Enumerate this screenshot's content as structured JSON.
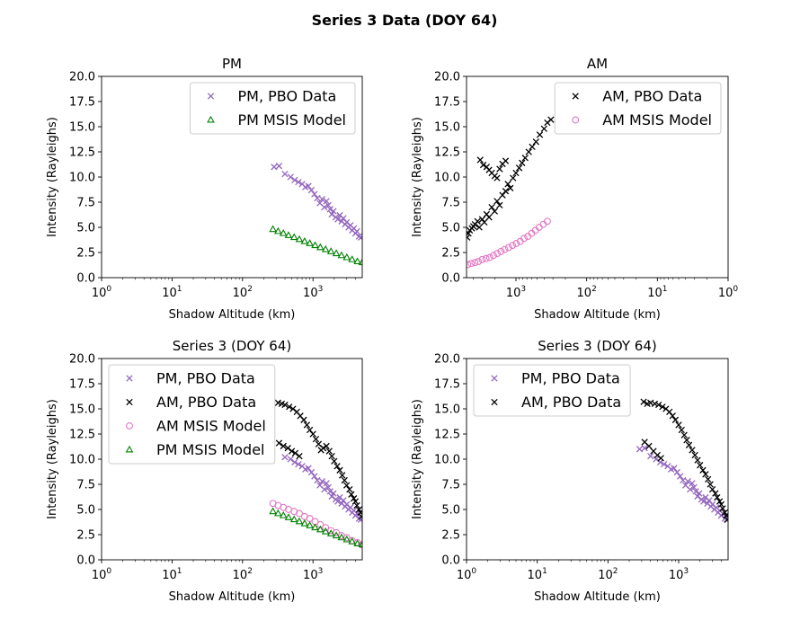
{
  "figure": {
    "title": "Series 3 Data (DOY 64)"
  },
  "colors": {
    "pm_data": "#9467bd",
    "am_data": "#000000",
    "am_model": "#e377c2",
    "pm_model": "#008000"
  },
  "chart_data": [
    {
      "type": "scatter",
      "title": "PM",
      "xlabel": "Shadow Altitude (km)",
      "ylabel": "Intensity (Rayleighs)",
      "xscale": "log",
      "xlim": [
        1,
        5000
      ],
      "ylim": [
        0,
        20
      ],
      "xticks": [
        "10^0",
        "10^1",
        "10^2",
        "10^3"
      ],
      "yticks": [
        "0.0",
        "2.5",
        "5.0",
        "7.5",
        "10.0",
        "12.5",
        "15.0",
        "17.5",
        "20.0"
      ],
      "legend": "top-right",
      "series": [
        {
          "name": "PM, PBO Data",
          "marker": "x",
          "color": "#9467bd",
          "x": [
            280,
            330,
            400,
            480,
            550,
            620,
            700,
            780,
            860,
            950,
            1050,
            1150,
            1250,
            1350,
            1450,
            1550,
            1650,
            1750,
            1850,
            1950,
            2100,
            2250,
            2400,
            2550,
            2700,
            2850,
            3000,
            3200,
            3400,
            3600,
            3800,
            4000,
            4200,
            4500,
            4800
          ],
          "y": [
            11.0,
            11.1,
            10.3,
            10.0,
            9.7,
            9.5,
            9.3,
            9.0,
            9.1,
            8.7,
            8.3,
            7.9,
            7.4,
            7.8,
            7.0,
            7.6,
            7.2,
            6.8,
            6.3,
            6.6,
            6.0,
            5.8,
            6.2,
            5.6,
            5.9,
            5.3,
            5.5,
            5.0,
            5.2,
            4.7,
            4.9,
            4.4,
            4.6,
            4.1,
            4.0
          ]
        },
        {
          "name": "PM MSIS Model",
          "marker": "triangle",
          "color": "#008000",
          "x": [
            270,
            320,
            380,
            450,
            540,
            640,
            760,
            900,
            1070,
            1270,
            1510,
            1800,
            2140,
            2540,
            3020,
            3590,
            4270,
            5000
          ],
          "y": [
            4.8,
            4.6,
            4.4,
            4.2,
            4.0,
            3.8,
            3.6,
            3.4,
            3.2,
            3.0,
            2.8,
            2.6,
            2.4,
            2.2,
            2.0,
            1.8,
            1.6,
            1.5
          ]
        }
      ]
    },
    {
      "type": "scatter",
      "title": "AM",
      "xlabel": "Shadow Altitude (km)",
      "ylabel": "Intensity (Rayleighs)",
      "xscale": "log",
      "xreversed": true,
      "xlim": [
        5000,
        1
      ],
      "ylim": [
        0,
        20
      ],
      "xticks": [
        "10^3",
        "10^2",
        "10^1",
        "10^0"
      ],
      "yticks": [
        "0.0",
        "2.5",
        "5.0",
        "7.5",
        "10.0",
        "12.5",
        "15.0",
        "17.5",
        "20.0"
      ],
      "legend": "top-right",
      "series": [
        {
          "name": "AM, PBO Data",
          "marker": "x",
          "color": "#000000",
          "x": [
            4900,
            4700,
            4500,
            4200,
            4000,
            3800,
            3500,
            3300,
            3000,
            2800,
            2600,
            2400,
            2200,
            2000,
            1850,
            1700,
            1550,
            1400,
            1300,
            1200,
            1100,
            1000,
            900,
            820,
            740,
            660,
            590,
            520,
            460,
            400,
            360,
            320,
            3200,
            2900,
            2600,
            2400,
            2200,
            2000,
            1850,
            1700,
            1550,
            1400
          ],
          "y": [
            4.0,
            4.4,
            4.7,
            4.9,
            5.1,
            5.3,
            5.6,
            5.0,
            5.8,
            5.5,
            6.3,
            6.0,
            7.0,
            6.6,
            7.6,
            7.2,
            8.2,
            8.6,
            9.3,
            8.9,
            9.9,
            10.4,
            10.9,
            11.4,
            11.9,
            12.5,
            13.0,
            13.5,
            14.2,
            14.8,
            15.4,
            15.7,
            11.7,
            11.2,
            11.0,
            10.7,
            10.4,
            10.1,
            9.9,
            10.8,
            11.3,
            11.6
          ]
        },
        {
          "name": "AM MSIS Model",
          "marker": "circle",
          "color": "#e377c2",
          "x": [
            4800,
            4300,
            3800,
            3400,
            3000,
            2650,
            2350,
            2080,
            1840,
            1630,
            1440,
            1270,
            1120,
            990,
            870,
            770,
            680,
            600,
            530,
            470,
            410,
            360
          ],
          "y": [
            1.3,
            1.4,
            1.5,
            1.6,
            1.8,
            1.9,
            2.0,
            2.2,
            2.4,
            2.6,
            2.8,
            3.0,
            3.2,
            3.4,
            3.6,
            3.9,
            4.1,
            4.4,
            4.7,
            5.0,
            5.3,
            5.6
          ]
        }
      ]
    },
    {
      "type": "scatter",
      "title": "Series 3 (DOY 64)",
      "xlabel": "Shadow Altitude (km)",
      "ylabel": "Intensity (Rayleighs)",
      "xscale": "log",
      "xlim": [
        1,
        5000
      ],
      "ylim": [
        0,
        20
      ],
      "xticks": [
        "10^0",
        "10^1",
        "10^2",
        "10^3"
      ],
      "yticks": [
        "0.0",
        "2.5",
        "5.0",
        "7.5",
        "10.0",
        "12.5",
        "15.0",
        "17.5",
        "20.0"
      ],
      "legend": "top-left",
      "series": [
        {
          "name": "PM, PBO Data",
          "marker": "x",
          "color": "#9467bd",
          "x": [
            400,
            480,
            550,
            620,
            700,
            780,
            860,
            950,
            1050,
            1150,
            1250,
            1350,
            1450,
            1550,
            1650,
            1750,
            1850,
            1950,
            2100,
            2250,
            2400,
            2550,
            2700,
            2850,
            3000,
            3200,
            3400,
            3600,
            3800,
            4000,
            4200,
            4500,
            4800
          ],
          "y": [
            10.2,
            10.0,
            9.7,
            9.5,
            9.3,
            9.0,
            9.1,
            8.7,
            8.3,
            7.9,
            7.4,
            7.8,
            7.0,
            7.6,
            7.2,
            6.8,
            6.3,
            6.6,
            6.0,
            5.8,
            6.2,
            5.6,
            5.9,
            5.3,
            5.5,
            5.0,
            5.2,
            4.7,
            4.9,
            4.4,
            4.6,
            4.1,
            4.0
          ]
        },
        {
          "name": "AM, PBO Data",
          "marker": "x",
          "color": "#000000",
          "x": [
            4900,
            4700,
            4500,
            4200,
            4000,
            3800,
            3500,
            3300,
            3000,
            2800,
            2600,
            2400,
            2200,
            2000,
            1850,
            1700,
            1550,
            1400,
            1300,
            1200,
            1100,
            1000,
            900,
            820,
            740,
            660,
            590,
            520,
            460,
            400,
            360,
            320,
            330,
            380,
            440,
            500,
            560,
            640
          ],
          "y": [
            4.3,
            4.7,
            5.0,
            5.4,
            5.8,
            6.1,
            6.5,
            7.0,
            7.4,
            7.9,
            8.4,
            8.9,
            9.3,
            9.8,
            10.3,
            10.8,
            11.3,
            11.1,
            10.9,
            11.5,
            12.0,
            12.5,
            12.9,
            13.4,
            13.9,
            14.3,
            14.7,
            15.0,
            15.2,
            15.4,
            15.5,
            15.6,
            11.6,
            11.3,
            11.1,
            10.8,
            10.6,
            10.3
          ]
        },
        {
          "name": "AM MSIS Model",
          "marker": "circle",
          "color": "#e377c2",
          "x": [
            270,
            320,
            380,
            450,
            540,
            640,
            760,
            900,
            1070,
            1270,
            1510,
            1800,
            2140,
            2540,
            3020,
            3590,
            4270,
            4900
          ],
          "y": [
            5.6,
            5.4,
            5.2,
            5.0,
            4.8,
            4.6,
            4.3,
            4.1,
            3.8,
            3.5,
            3.2,
            2.9,
            2.7,
            2.4,
            2.2,
            1.9,
            1.7,
            1.5
          ]
        },
        {
          "name": "PM MSIS Model",
          "marker": "triangle",
          "color": "#008000",
          "x": [
            270,
            320,
            380,
            450,
            540,
            640,
            760,
            900,
            1070,
            1270,
            1510,
            1800,
            2140,
            2540,
            3020,
            3590,
            4270,
            5000
          ],
          "y": [
            4.8,
            4.6,
            4.4,
            4.2,
            4.0,
            3.8,
            3.6,
            3.4,
            3.2,
            3.0,
            2.8,
            2.6,
            2.4,
            2.2,
            2.0,
            1.8,
            1.6,
            1.5
          ]
        }
      ]
    },
    {
      "type": "scatter",
      "title": "Series 3 (DOY 64)",
      "xlabel": "Shadow Altitude (km)",
      "ylabel": "Intensity (Rayleighs)",
      "xscale": "log",
      "xlim": [
        1,
        5000
      ],
      "ylim": [
        0,
        20
      ],
      "xticks": [
        "10^0",
        "10^1",
        "10^2",
        "10^3"
      ],
      "yticks": [
        "0.0",
        "2.5",
        "5.0",
        "7.5",
        "10.0",
        "12.5",
        "15.0",
        "17.5",
        "20.0"
      ],
      "legend": "top-left",
      "series": [
        {
          "name": "PM, PBO Data",
          "marker": "x",
          "color": "#9467bd",
          "x": [
            280,
            330,
            400,
            480,
            550,
            620,
            700,
            780,
            860,
            950,
            1050,
            1150,
            1250,
            1350,
            1450,
            1550,
            1650,
            1750,
            1850,
            1950,
            2100,
            2250,
            2400,
            2550,
            2700,
            2850,
            3000,
            3200,
            3400,
            3600,
            3800,
            4000,
            4200,
            4500,
            4800
          ],
          "y": [
            11.0,
            11.1,
            10.3,
            10.0,
            9.7,
            9.5,
            9.3,
            9.0,
            9.1,
            8.7,
            8.3,
            7.9,
            7.4,
            7.8,
            7.0,
            7.6,
            7.2,
            6.8,
            6.3,
            6.6,
            6.0,
            5.8,
            6.2,
            5.6,
            5.9,
            5.3,
            5.5,
            5.0,
            5.2,
            4.7,
            4.9,
            4.4,
            4.6,
            4.1,
            4.0
          ]
        },
        {
          "name": "AM, PBO Data",
          "marker": "x",
          "color": "#000000",
          "x": [
            4900,
            4700,
            4500,
            4200,
            4000,
            3800,
            3500,
            3300,
            3000,
            2800,
            2600,
            2400,
            2200,
            2000,
            1850,
            1700,
            1550,
            1400,
            1300,
            1200,
            1100,
            1000,
            900,
            820,
            740,
            660,
            590,
            520,
            460,
            400,
            360,
            320,
            330,
            380,
            440,
            500,
            560
          ],
          "y": [
            4.0,
            4.4,
            4.7,
            5.1,
            5.5,
            5.8,
            6.2,
            6.6,
            7.0,
            7.5,
            8.0,
            8.5,
            8.9,
            9.4,
            9.9,
            10.4,
            10.9,
            11.4,
            11.9,
            12.4,
            12.9,
            13.4,
            13.9,
            14.3,
            14.7,
            15.0,
            15.2,
            15.4,
            15.5,
            15.6,
            15.5,
            15.7,
            11.7,
            11.3,
            10.8,
            10.4,
            10.1
          ]
        }
      ]
    }
  ]
}
